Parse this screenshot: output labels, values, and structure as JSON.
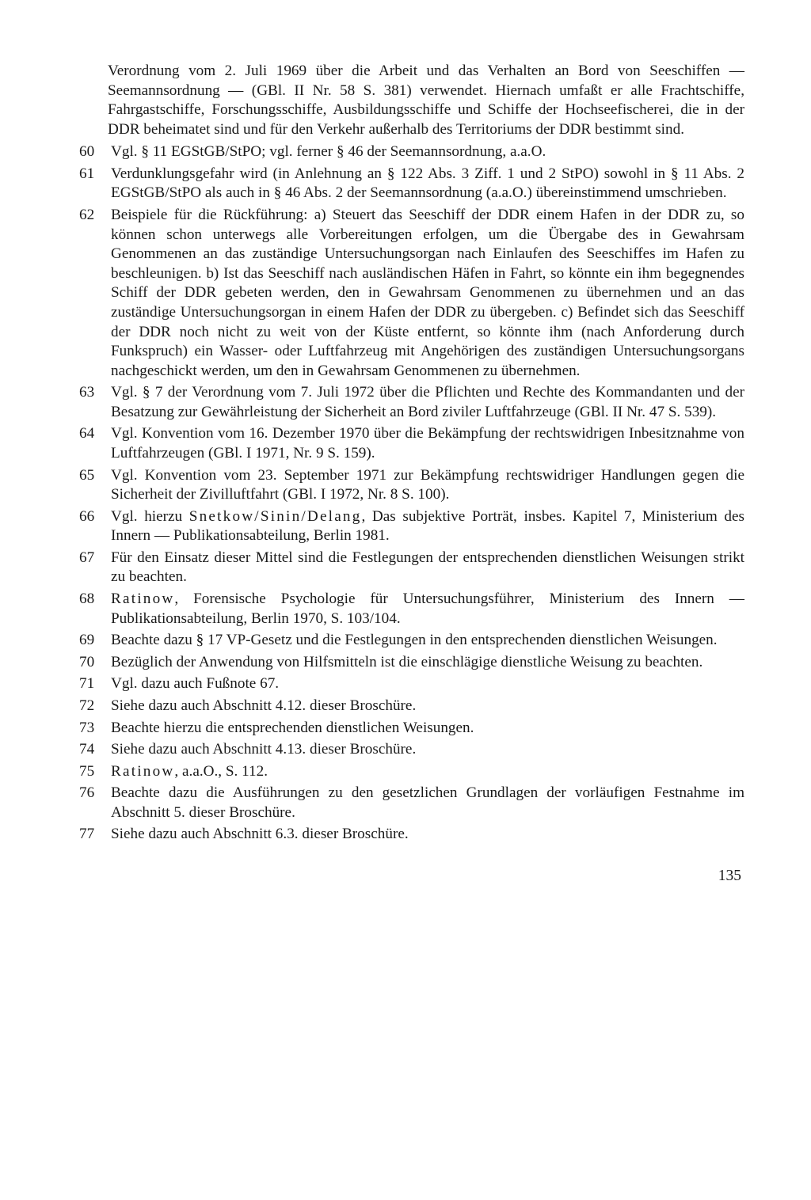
{
  "continuation": "Verordnung vom 2. Juli 1969 über die Arbeit und das Verhalten an Bord von Seeschiffen — Seemannsordnung — (GBl. II Nr. 58 S. 381) verwendet. Hiernach umfaßt er alle Frachtschiffe, Fahrgastschiffe, Forschungsschiffe, Ausbildungsschiffe und Schiffe der Hochseefischerei, die in der DDR beheimatet sind und für den Verkehr außerhalb des Territoriums der DDR bestimmt sind.",
  "notes": [
    {
      "n": "60",
      "t": "Vgl. § 11 EGStGB/StPO; vgl. ferner § 46 der Seemannsordnung, a.a.O."
    },
    {
      "n": "61",
      "t": "Verdunklungsgefahr wird (in Anlehnung an § 122 Abs. 3 Ziff. 1 und 2 StPO) sowohl in § 11 Abs. 2 EGStGB/StPO als auch in § 46 Abs. 2 der Seemannsordnung (a.a.O.) übereinstimmend umschrieben."
    },
    {
      "n": "62",
      "t": "Beispiele für die Rückführung: a) Steuert das Seeschiff der DDR einem Hafen in der DDR zu, so können schon unterwegs alle Vorbereitungen erfolgen, um die Übergabe des in Gewahrsam Genommenen an das zuständige Untersuchungsorgan nach Einlaufen des Seeschiffes im Hafen zu beschleunigen. b) Ist das Seeschiff nach ausländischen Häfen in Fahrt, so könnte ein ihm begegnendes Schiff der DDR gebeten werden, den in Gewahrsam Genommenen zu übernehmen und an das zuständige Untersuchungsorgan in einem Hafen der DDR zu übergeben. c) Befindet sich das Seeschiff der DDR noch nicht zu weit von der Küste entfernt, so könnte ihm (nach Anforderung durch Funkspruch) ein Wasser- oder Luftfahrzeug mit Angehörigen des zuständigen Untersuchungsorgans nachgeschickt werden, um den in Gewahrsam Genommenen zu übernehmen."
    },
    {
      "n": "63",
      "t": "Vgl. § 7 der Verordnung vom 7. Juli 1972 über die Pflichten und Rechte des Kommandanten und der Besatzung zur Gewährleistung der Sicherheit an Bord ziviler Luftfahrzeuge (GBl. II Nr. 47 S. 539)."
    },
    {
      "n": "64",
      "t": "Vgl. Konvention vom 16. Dezember 1970 über die Bekämpfung der rechtswidrigen Inbesitznahme von Luftfahrzeugen (GBl. I 1971, Nr. 9 S. 159)."
    },
    {
      "n": "65",
      "t": "Vgl. Konvention vom 23. September 1971 zur Bekämpfung rechtswidriger Handlungen gegen die Sicherheit der Zivilluftfahrt (GBl. I 1972, Nr. 8 S. 100)."
    },
    {
      "n": "66",
      "html": "Vgl. hierzu <span class=\"ls\">Snetkow/Sinin/Delang</span>, Das subjektive Porträt, insbes. Kapitel 7, Ministerium des Innern — Publikationsabteilung, Berlin 1981."
    },
    {
      "n": "67",
      "t": "Für den Einsatz dieser Mittel sind die Festlegungen der entsprechenden dienstlichen Weisungen strikt zu beachten."
    },
    {
      "n": "68",
      "html": "<span class=\"ls\">Ratinow</span>, Forensische Psychologie für Untersuchungsführer, Ministerium des Innern — Publikationsabteilung, Berlin 1970, S. 103/104."
    },
    {
      "n": "69",
      "t": "Beachte dazu § 17 VP-Gesetz und die Festlegungen in den entsprechenden dienstlichen Weisungen."
    },
    {
      "n": "70",
      "t": "Bezüglich der Anwendung von Hilfsmitteln ist die einschlägige dienstliche Weisung zu beachten."
    },
    {
      "n": "71",
      "t": "Vgl. dazu auch Fußnote 67."
    },
    {
      "n": "72",
      "t": "Siehe dazu auch Abschnitt 4.12. dieser Broschüre."
    },
    {
      "n": "73",
      "t": "Beachte hierzu die entsprechenden dienstlichen Weisungen."
    },
    {
      "n": "74",
      "t": "Siehe dazu auch Abschnitt 4.13. dieser Broschüre."
    },
    {
      "n": "75",
      "html": "<span class=\"ls\">Ratinow</span>, a.a.O., S. 112."
    },
    {
      "n": "76",
      "t": "Beachte dazu die Ausführungen zu den gesetzlichen Grundlagen der vorläufigen Festnahme im Abschnitt 5. dieser Broschüre."
    },
    {
      "n": "77",
      "t": "Siehe dazu auch Abschnitt 6.3. dieser Broschüre."
    }
  ],
  "page_number": "135"
}
